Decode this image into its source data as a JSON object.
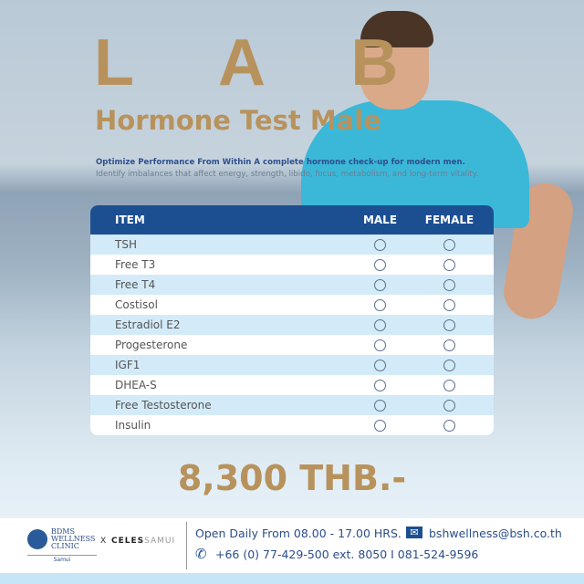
{
  "title": "L A B",
  "subtitle": "Hormone Test Male",
  "tagline": "Optimize Performance From Within A complete hormone check-up for modern men.",
  "description": "Identify imbalances that affect energy, strength, libido, focus, metabolism, and long-term vitality.",
  "table": {
    "headers": [
      "ITEM",
      "MALE",
      "FEMALE"
    ],
    "rows": [
      "TSH",
      "Free T3",
      "Free T4",
      "Costisol",
      "Estradiol E2",
      "Progesterone",
      "IGF1",
      "DHEA-S",
      "Free Testosterone",
      "Insulin"
    ]
  },
  "price": "8,300 THB.-",
  "footer": {
    "logo_bdms": "BDMS WELLNESS CLINIC",
    "logo_samui": "Samui",
    "x": "X",
    "celes_bold": "CELES",
    "celes_light": "SAMUI",
    "hours": "Open Daily From 08.00 - 17.00 HRS.",
    "email": "bshwellness@bsh.co.th",
    "phone": "+66 (0) 77-429-500 ext. 8050  I  081-524-9596"
  },
  "colors": {
    "gold": "#b8925c",
    "navy": "#1c4f92",
    "row_light": "#d3ebf8"
  }
}
